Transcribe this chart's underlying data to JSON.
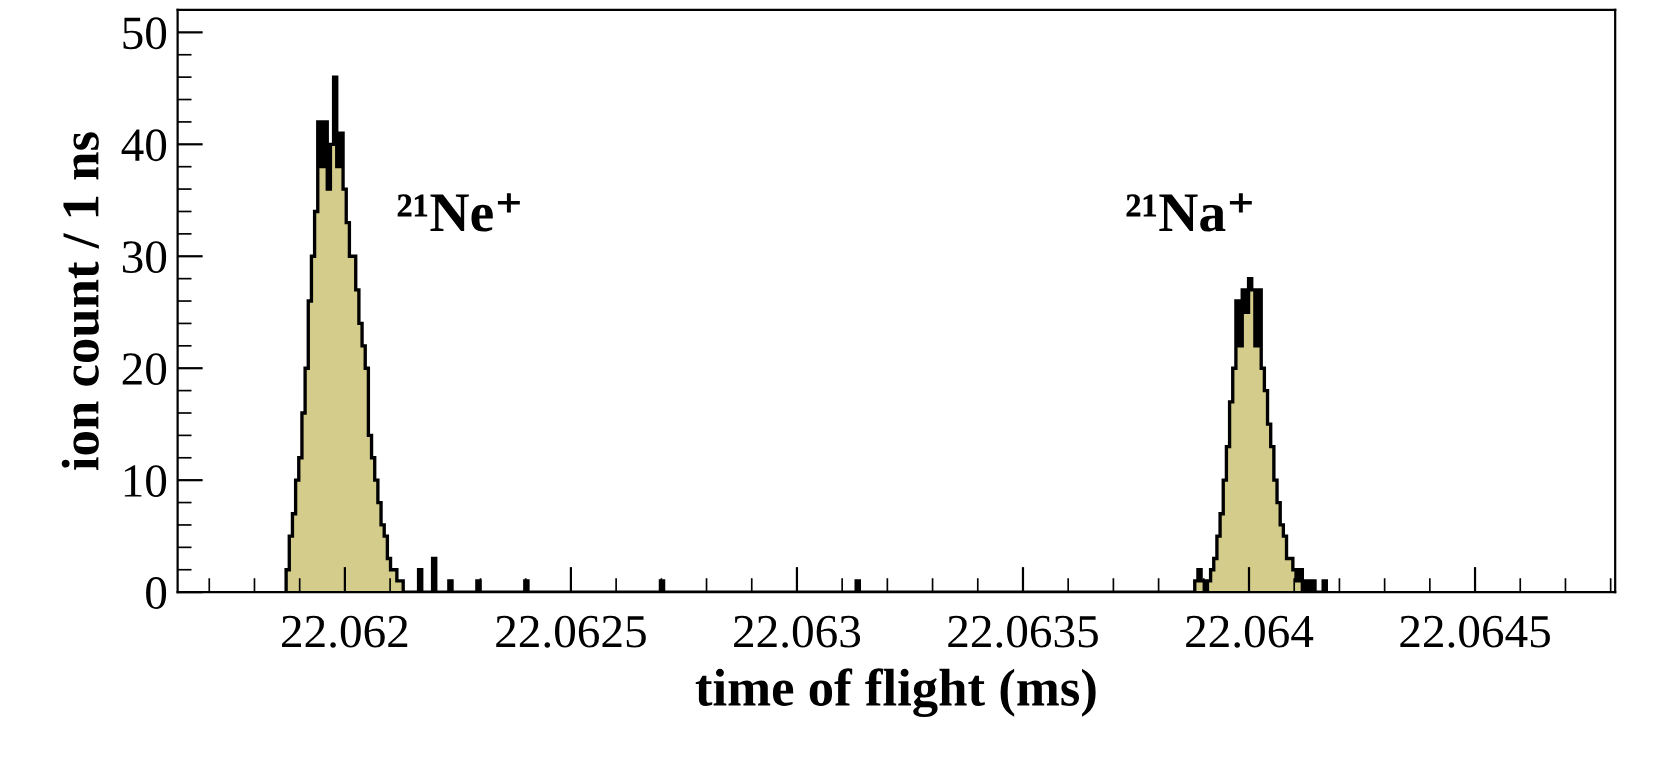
{
  "chart_data": {
    "type": "histogram",
    "xlabel": "time of flight (ms)",
    "ylabel": "ion count / 1 ns",
    "bins": [
      22.06187,
      22.061877,
      22.061884,
      22.061891,
      22.061898,
      22.061905,
      22.061912,
      22.061919,
      22.061926,
      22.061933,
      22.06194,
      22.061947,
      22.061954,
      22.061961,
      22.061968,
      22.061975,
      22.061982,
      22.061989,
      22.061996,
      22.062003,
      22.06201,
      22.062017,
      22.062024,
      22.062031,
      22.062038,
      22.062045,
      22.062052,
      22.062059,
      22.062066,
      22.062073,
      22.06208,
      22.062087,
      22.062094,
      22.062101,
      22.062108,
      22.062115,
      22.062122,
      22.062129,
      22.062136,
      22.062163,
      22.06217,
      22.062194,
      22.062201,
      22.06223,
      22.062237,
      22.062292,
      22.062299,
      22.062398,
      22.062405,
      22.062698,
      22.062705,
      22.063131,
      22.063138,
      22.06388,
      22.063887,
      22.063894,
      22.063901,
      22.063908,
      22.063915,
      22.063922,
      22.063929,
      22.063936,
      22.063943,
      22.06395,
      22.063957,
      22.063964,
      22.063971,
      22.063978,
      22.063985,
      22.063992,
      22.063999,
      22.064006,
      22.064013,
      22.06402,
      22.064027,
      22.064034,
      22.064041,
      22.064048,
      22.064055,
      22.064062,
      22.064069,
      22.064076,
      22.064083,
      22.06409,
      22.064097,
      22.064104,
      22.064111,
      22.064118,
      22.064125,
      22.064132,
      22.064139,
      22.064146,
      22.064164,
      22.064171
    ],
    "values": [
      2,
      5,
      7,
      10,
      12,
      16,
      20,
      26,
      30,
      34,
      42,
      38,
      42,
      36,
      40,
      46,
      38,
      41,
      36,
      33,
      30,
      30,
      27,
      24,
      22,
      20,
      14,
      12,
      10,
      8,
      6,
      5,
      3,
      2,
      2,
      1,
      1,
      0,
      0,
      2,
      0,
      3,
      0,
      1,
      0,
      1,
      0,
      1,
      0,
      1,
      0,
      1,
      0,
      1,
      2,
      1,
      0,
      1,
      2,
      3,
      5,
      7,
      10,
      13,
      17,
      20,
      26,
      22,
      27,
      25,
      28,
      27,
      22,
      27,
      20,
      18,
      15,
      13,
      10,
      8,
      6,
      5,
      3,
      3,
      2,
      1,
      2,
      0,
      1,
      0,
      1,
      0,
      1
    ],
    "color": "#d4cc8a",
    "xlim": [
      22.06163,
      22.06481
    ],
    "xticks": [
      22.062,
      22.0625,
      22.063,
      22.0635,
      22.064,
      22.0645
    ],
    "ylim": [
      0,
      52
    ],
    "yticks": [
      0,
      10,
      20,
      30,
      40,
      50
    ],
    "annotations": [
      "²¹Ne⁺",
      "²¹Na⁺"
    ]
  }
}
